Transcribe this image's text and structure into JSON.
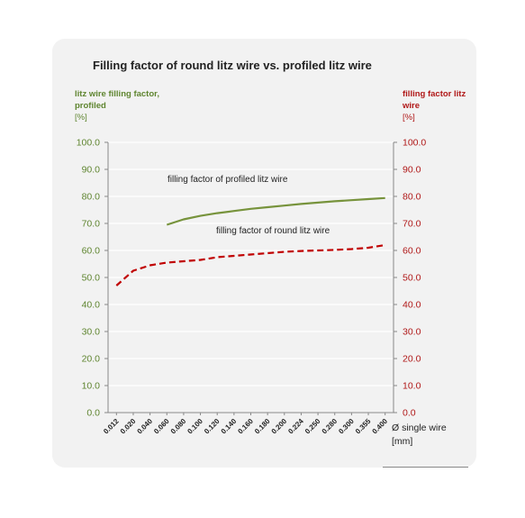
{
  "chart_data": {
    "type": "line",
    "title": "Filling factor of round litz wire vs. profiled litz wire",
    "ylabel_left": "litz wire filling factor, profiled",
    "ylabel_left_unit": "[%]",
    "ylabel_right": "filling factor litz wire",
    "ylabel_right_unit": "[%]",
    "xlabel": "Ø single wire",
    "xlabel_unit": "[mm]",
    "categories": [
      "0.012",
      "0.020",
      "0.040",
      "0.060",
      "0.080",
      "0.100",
      "0.120",
      "0.140",
      "0.160",
      "0.180",
      "0.200",
      "0.224",
      "0.250",
      "0.280",
      "0.300",
      "0.355",
      "0.400"
    ],
    "ylim": [
      0,
      100
    ],
    "yticks": [
      "0.0",
      "10.0",
      "20.0",
      "30.0",
      "40.0",
      "50.0",
      "60.0",
      "70.0",
      "80.0",
      "90.0",
      "100.0"
    ],
    "grid": true,
    "series": [
      {
        "name": "filling factor of profiled litz wire",
        "axis": "left",
        "color": "#77933c",
        "style": "solid",
        "values": [
          null,
          null,
          null,
          69.5,
          71.5,
          72.8,
          73.8,
          74.6,
          75.4,
          76.0,
          76.6,
          77.2,
          77.7,
          78.2,
          78.6,
          79.0,
          79.4
        ]
      },
      {
        "name": "filling factor of round litz wire",
        "axis": "right",
        "color": "#c00000",
        "style": "dashed",
        "values": [
          47.0,
          52.5,
          54.5,
          55.5,
          56.0,
          56.5,
          57.5,
          58.0,
          58.5,
          59.0,
          59.5,
          59.8,
          60.0,
          60.2,
          60.5,
          61.0,
          62.0
        ]
      }
    ],
    "annotations": {
      "profiled": "filling factor of profiled litz wire",
      "round": "filling factor of round litz wire"
    }
  },
  "colors": {
    "left_axis": "#5f8530",
    "right_axis": "#b01818",
    "panel": "#f2f2f2",
    "grid": "#ffffff"
  }
}
